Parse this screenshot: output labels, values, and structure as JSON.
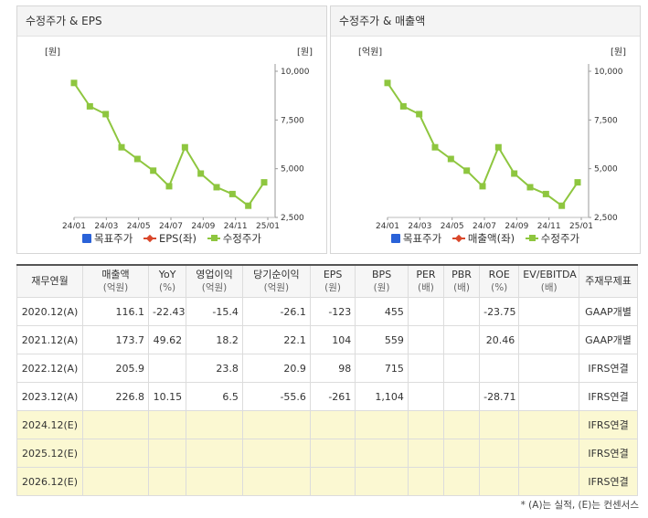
{
  "charts": [
    {
      "id": "eps",
      "title": "수정주가 & EPS",
      "left_unit": "[원]",
      "right_unit": "[원]",
      "legend": [
        "목표주가",
        "EPS(좌)",
        "수정주가"
      ]
    },
    {
      "id": "sales",
      "title": "수정주가 & 매출액",
      "left_unit": "[억원]",
      "right_unit": "[원]",
      "legend": [
        "목표주가",
        "매출액(좌)",
        "수정주가"
      ]
    }
  ],
  "chart_data": [
    {
      "type": "line",
      "title": "수정주가 & EPS",
      "x_ticks": [
        "24/01",
        "24/03",
        "24/05",
        "24/07",
        "24/09",
        "24/11",
        "25/01"
      ],
      "y_right_ticks": [
        "10,000",
        "7,500",
        "5,000",
        "2,500"
      ],
      "y_right_range": [
        2500,
        10000
      ],
      "series": [
        {
          "name": "수정주가",
          "color": "#8ec63f",
          "values": [
            9400,
            8200,
            7800,
            6100,
            5500,
            4900,
            4100,
            6100,
            4750,
            4050,
            3700,
            3100,
            4300
          ]
        }
      ]
    },
    {
      "type": "line",
      "title": "수정주가 & 매출액",
      "x_ticks": [
        "24/01",
        "24/03",
        "24/05",
        "24/07",
        "24/09",
        "24/11",
        "25/01"
      ],
      "y_right_ticks": [
        "10,000",
        "7,500",
        "5,000",
        "2,500"
      ],
      "y_right_range": [
        2500,
        10000
      ],
      "series": [
        {
          "name": "수정주가",
          "color": "#8ec63f",
          "values": [
            9400,
            8200,
            7800,
            6100,
            5500,
            4900,
            4100,
            6100,
            4750,
            4050,
            3700,
            3100,
            4300
          ]
        }
      ]
    }
  ],
  "table": {
    "headers": [
      {
        "label": "재무연월",
        "unit": ""
      },
      {
        "label": "매출액",
        "unit": "(억원)"
      },
      {
        "label": "YoY",
        "unit": "(%)"
      },
      {
        "label": "영업이익",
        "unit": "(억원)"
      },
      {
        "label": "당기순이익",
        "unit": "(억원)"
      },
      {
        "label": "EPS",
        "unit": "(원)"
      },
      {
        "label": "BPS",
        "unit": "(원)"
      },
      {
        "label": "PER",
        "unit": "(배)"
      },
      {
        "label": "PBR",
        "unit": "(배)"
      },
      {
        "label": "ROE",
        "unit": "(%)"
      },
      {
        "label": "EV/EBITDA",
        "unit": "(배)"
      },
      {
        "label": "주재무제표",
        "unit": ""
      }
    ],
    "rows": [
      {
        "cells": [
          "2020.12(A)",
          "116.1",
          "-22.43",
          "-15.4",
          "-26.1",
          "-123",
          "455",
          "",
          "",
          "-23.75",
          "",
          "GAAP개별"
        ],
        "estimate": false
      },
      {
        "cells": [
          "2021.12(A)",
          "173.7",
          "49.62",
          "18.2",
          "22.1",
          "104",
          "559",
          "",
          "",
          "20.46",
          "",
          "GAAP개별"
        ],
        "estimate": false
      },
      {
        "cells": [
          "2022.12(A)",
          "205.9",
          "",
          "23.8",
          "20.9",
          "98",
          "715",
          "",
          "",
          "",
          "",
          "IFRS연결"
        ],
        "estimate": false
      },
      {
        "cells": [
          "2023.12(A)",
          "226.8",
          "10.15",
          "6.5",
          "-55.6",
          "-261",
          "1,104",
          "",
          "",
          "-28.71",
          "",
          "IFRS연결"
        ],
        "estimate": false
      },
      {
        "cells": [
          "2024.12(E)",
          "",
          "",
          "",
          "",
          "",
          "",
          "",
          "",
          "",
          "",
          "IFRS연결"
        ],
        "estimate": true
      },
      {
        "cells": [
          "2025.12(E)",
          "",
          "",
          "",
          "",
          "",
          "",
          "",
          "",
          "",
          "",
          "IFRS연결"
        ],
        "estimate": true
      },
      {
        "cells": [
          "2026.12(E)",
          "",
          "",
          "",
          "",
          "",
          "",
          "",
          "",
          "",
          "",
          "IFRS연결"
        ],
        "estimate": true
      }
    ]
  },
  "footnote": "* (A)는 실적, (E)는 컨센서스"
}
